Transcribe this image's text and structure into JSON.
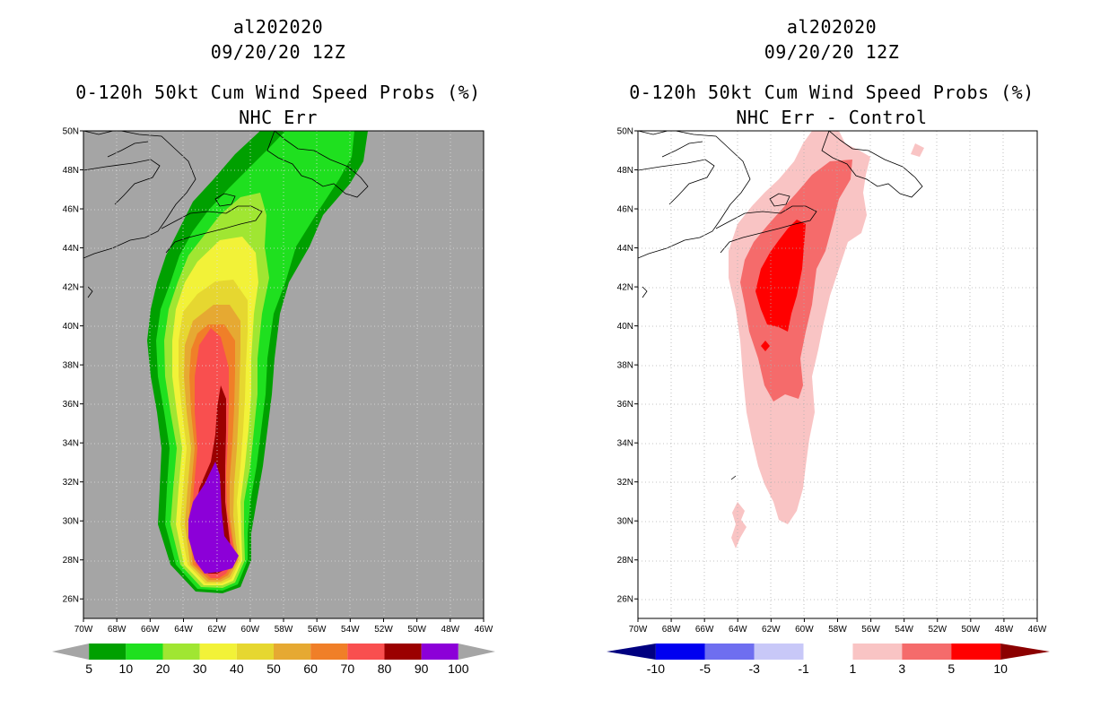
{
  "panels": [
    {
      "storm_id": "al202020",
      "date": "09/20/20 12Z",
      "title": "0-120h 50kt Cum Wind Speed Probs (%)",
      "subtitle": "NHC Err",
      "background": "#a5a5a5",
      "colorbar": {
        "labels": [
          "5",
          "10",
          "20",
          "30",
          "40",
          "50",
          "60",
          "70",
          "80",
          "90",
          "100"
        ],
        "colors": [
          "#a5a5a5",
          "#00a000",
          "#1fe01f",
          "#a0e632",
          "#f2f238",
          "#e6d730",
          "#e6a932",
          "#f07f28",
          "#f94f4f",
          "#9b0000",
          "#8c00d8",
          "#a5a5a5"
        ]
      }
    },
    {
      "storm_id": "al202020",
      "date": "09/20/20 12Z",
      "title": "0-120h 50kt Cum Wind Speed Probs (%)",
      "subtitle": "NHC Err - Control",
      "background": "#ffffff",
      "colorbar": {
        "labels": [
          "-10",
          "-5",
          "-3",
          "-1",
          "1",
          "3",
          "5",
          "10"
        ],
        "colors": [
          "#000080",
          "#0000f0",
          "#6e6ef0",
          "#c8c8f8",
          "#ffffff",
          "#f9c4c4",
          "#f56b6b",
          "#ff0000",
          "#8b0000"
        ]
      }
    }
  ],
  "lat_labels": [
    "50N",
    "48N",
    "46N",
    "44N",
    "42N",
    "40N",
    "38N",
    "36N",
    "34N",
    "32N",
    "30N",
    "28N",
    "26N"
  ],
  "lon_labels": [
    "70W",
    "68W",
    "66W",
    "64W",
    "62W",
    "60W",
    "58W",
    "56W",
    "54W",
    "52W",
    "50W",
    "48W",
    "46W"
  ]
}
